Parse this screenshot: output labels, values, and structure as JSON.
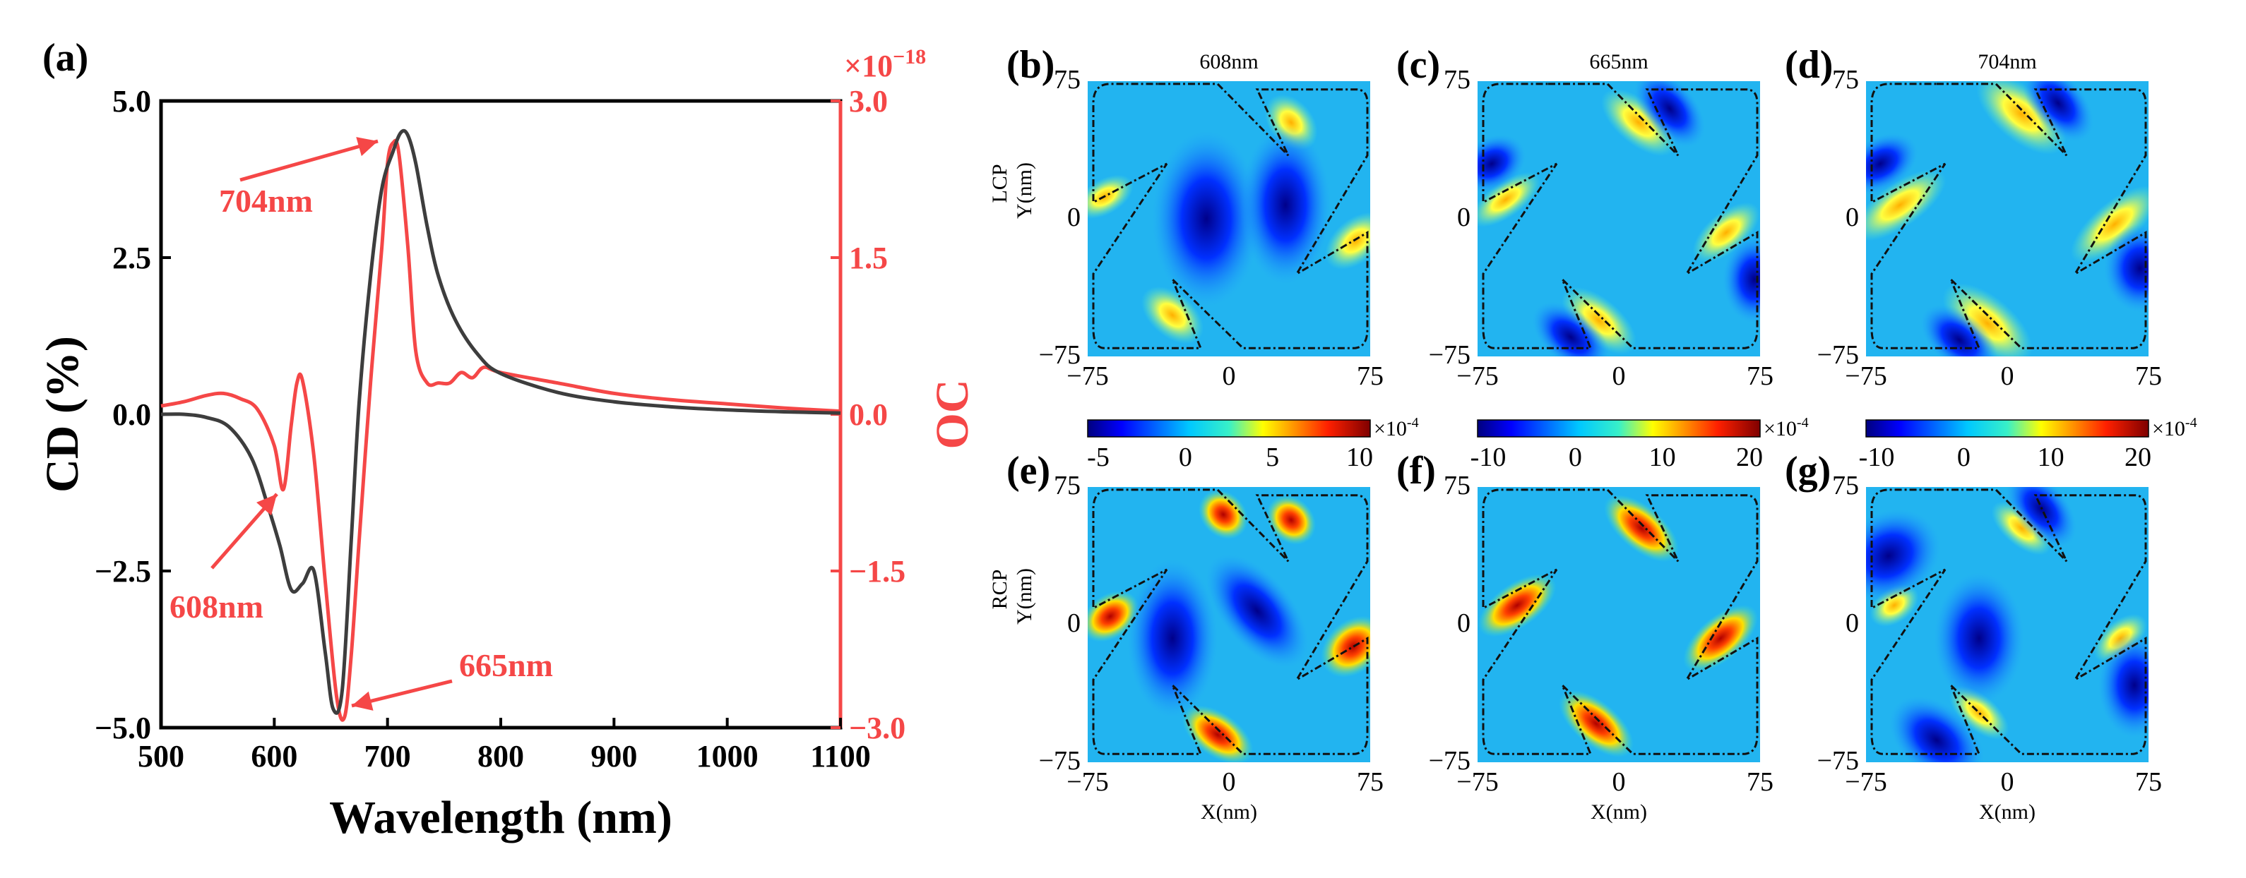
{
  "chart_data": [
    {
      "type": "line",
      "panel": "(a)",
      "xlabel": "Wavelength (nm)",
      "ylabel_left": "CD (%)",
      "ylabel_right": "OC",
      "right_multiplier": "×10",
      "right_exponent": "−18",
      "xlim": [
        500,
        1100
      ],
      "xticks": [
        "500",
        "600",
        "700",
        "800",
        "900",
        "1000",
        "1100"
      ],
      "ylim_left": [
        -5.0,
        5.0
      ],
      "yticks_left": [
        "−5.0",
        "−2.5",
        "0.0",
        "2.5",
        "5.0"
      ],
      "ylim_right": [
        -3.0,
        3.0
      ],
      "yticks_right": [
        "−3.0",
        "−1.5",
        "0.0",
        "1.5",
        "3.0"
      ],
      "series": [
        {
          "name": "CD",
          "axis": "left",
          "color": "#3d3d3d",
          "x": [
            500,
            520,
            540,
            560,
            580,
            595,
            605,
            615,
            625,
            635,
            645,
            652,
            660,
            668,
            675,
            685,
            695,
            705,
            712,
            718,
            725,
            735,
            745,
            760,
            780,
            800,
            850,
            900,
            950,
            1000,
            1050,
            1100
          ],
          "y": [
            0,
            0,
            -0.05,
            -0.2,
            -0.7,
            -1.5,
            -2.1,
            -2.8,
            -2.7,
            -2.5,
            -3.8,
            -4.7,
            -4.4,
            -2.0,
            0.2,
            2.2,
            3.6,
            4.2,
            4.5,
            4.45,
            4.0,
            3.0,
            2.2,
            1.5,
            0.95,
            0.65,
            0.35,
            0.2,
            0.12,
            0.07,
            0.04,
            0.02
          ]
        },
        {
          "name": "OC",
          "axis": "right",
          "color": "#f54747",
          "x": [
            500,
            520,
            540,
            555,
            570,
            585,
            600,
            608,
            615,
            620,
            625,
            635,
            645,
            655,
            662,
            668,
            675,
            685,
            695,
            700,
            705,
            710,
            718,
            725,
            735,
            745,
            755,
            765,
            775,
            785,
            800,
            850,
            900,
            950,
            1000,
            1050,
            1100
          ],
          "y": [
            0.08,
            0.12,
            0.18,
            0.2,
            0.15,
            0.05,
            -0.3,
            -0.72,
            -0.1,
            0.3,
            0.32,
            -0.4,
            -1.6,
            -2.7,
            -2.9,
            -2.3,
            -1.2,
            0.3,
            1.6,
            2.4,
            2.6,
            2.5,
            1.6,
            0.6,
            0.3,
            0.3,
            0.3,
            0.4,
            0.35,
            0.45,
            0.4,
            0.3,
            0.2,
            0.14,
            0.1,
            0.06,
            0.03
          ]
        }
      ],
      "annotations": [
        {
          "text": "704nm",
          "x": 704
        },
        {
          "text": "608nm",
          "x": 608
        },
        {
          "text": "665nm",
          "x": 665
        }
      ]
    },
    {
      "type": "heatmap",
      "panels": [
        {
          "letter": "(b)",
          "title": "608nm",
          "row": "LCP"
        },
        {
          "letter": "(c)",
          "title": "665nm",
          "row": "LCP"
        },
        {
          "letter": "(d)",
          "title": "704nm",
          "row": "LCP"
        },
        {
          "letter": "(e)",
          "title": "",
          "row": "RCP"
        },
        {
          "letter": "(f)",
          "title": "",
          "row": "RCP"
        },
        {
          "letter": "(g)",
          "title": "",
          "row": "RCP"
        }
      ],
      "row_labels": [
        "LCP",
        "RCP"
      ],
      "xlabel": "X(nm)",
      "ylabel": "Y(nm)",
      "axis_ticks": [
        "−75",
        "0",
        "75"
      ],
      "colorbars": [
        {
          "ticks": [
            "-5",
            "0",
            "5",
            "10"
          ],
          "multiplier": "×10",
          "exponent": "-4"
        },
        {
          "ticks": [
            "-10",
            "0",
            "10",
            "20"
          ],
          "multiplier": "×10",
          "exponent": "-4"
        },
        {
          "ticks": [
            "-10",
            "0",
            "10",
            "20"
          ],
          "multiplier": "×10",
          "exponent": "-4"
        }
      ]
    }
  ],
  "colors": {
    "cd_line": "#3d3d3d",
    "oc_line": "#f54747",
    "annotation": "#f54747",
    "heat_background": "#22b4f0"
  }
}
